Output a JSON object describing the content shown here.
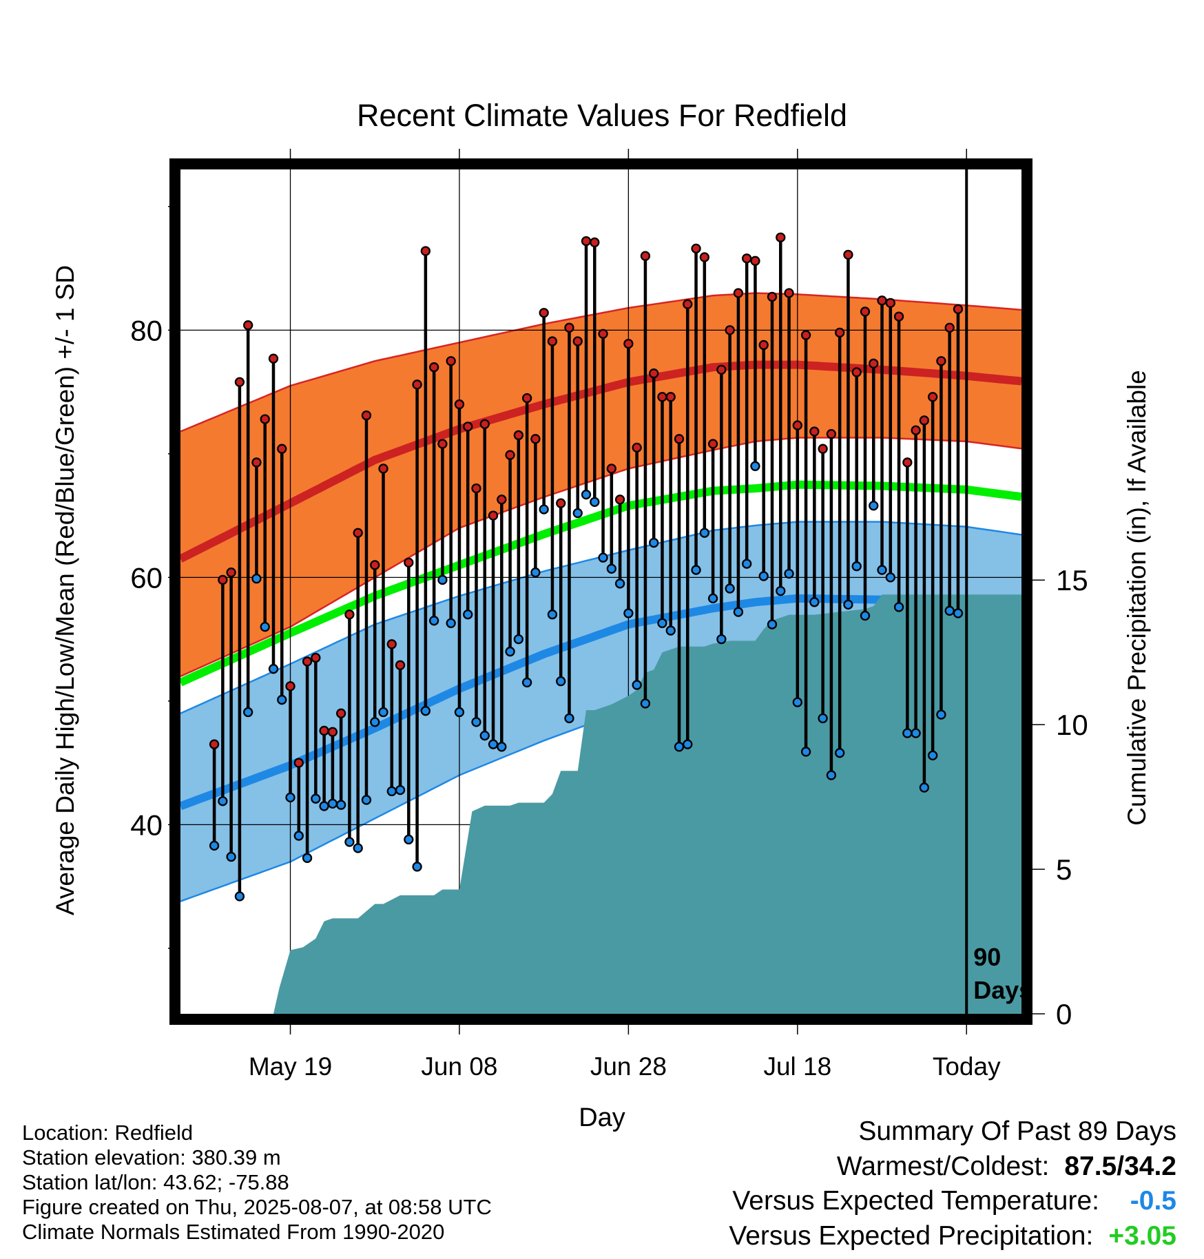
{
  "chart_data": {
    "type": "line",
    "title": "Recent Climate Values For Redfield",
    "xlabel": "Day",
    "ylabel": "Average Daily High/Low/Mean (Red/Blue/Green) +/- 1 SD",
    "y2label": "Cumulative Precipitation (in), If Available",
    "x_range_days": [
      -93,
      6.5
    ],
    "ylim": [
      24.7,
      93
    ],
    "y_ticks": [
      40,
      60,
      80
    ],
    "y2lim": [
      0,
      29.2
    ],
    "y2_ticks": [
      0,
      5,
      10,
      15
    ],
    "x_ticks": [
      {
        "day": -80,
        "label": "May 19"
      },
      {
        "day": -60,
        "label": "Jun 08"
      },
      {
        "day": -40,
        "label": "Jun 28"
      },
      {
        "day": -20,
        "label": "Jul 18"
      },
      {
        "day": 0,
        "label": "Today"
      }
    ],
    "window_label": [
      "90",
      "Days"
    ],
    "grid": true,
    "normal_days": [
      -93,
      -80,
      -70,
      -60,
      -50,
      -40,
      -30,
      -25,
      -20,
      -10,
      0,
      9
    ],
    "normal_high": [
      61.5,
      66.0,
      69.5,
      72.0,
      74.0,
      75.8,
      77.0,
      77.2,
      77.2,
      76.8,
      76.3,
      75.7
    ],
    "normal_high_upper": [
      71.8,
      75.5,
      77.5,
      79.0,
      80.5,
      81.8,
      82.8,
      83.0,
      82.9,
      82.5,
      82.0,
      81.5
    ],
    "normal_high_lower": [
      52.0,
      56.0,
      60.0,
      64.0,
      66.5,
      68.8,
      70.3,
      71.0,
      71.3,
      71.3,
      71.0,
      70.2
    ],
    "normal_mean": [
      51.5,
      55.5,
      58.5,
      61.0,
      63.5,
      65.8,
      67.0,
      67.2,
      67.5,
      67.4,
      67.1,
      66.3
    ],
    "normal_low": [
      41.5,
      44.8,
      47.8,
      51.0,
      53.8,
      56.2,
      57.5,
      58.0,
      58.3,
      58.2,
      57.7,
      56.8
    ],
    "normal_low_upper": [
      49.0,
      53.0,
      56.2,
      58.5,
      60.5,
      62.2,
      63.8,
      64.2,
      64.5,
      64.5,
      64.1,
      63.2
    ],
    "normal_low_lower": [
      33.8,
      37.0,
      40.5,
      44.0,
      46.8,
      49.3,
      51.0,
      51.7,
      52.0,
      52.2,
      51.8,
      50.6
    ],
    "series": [
      {
        "name": "High",
        "color": "#c8201e",
        "values": [
          46.5,
          59.8,
          60.4,
          75.8,
          80.4,
          69.3,
          72.8,
          77.7,
          70.4,
          51.2,
          45.0,
          53.2,
          53.5,
          47.6,
          47.5,
          49.0,
          57.0,
          63.6,
          73.1,
          61.0,
          68.8,
          54.6,
          52.9,
          61.2,
          75.6,
          86.4,
          77.0,
          70.8,
          77.5,
          74.0,
          72.2,
          67.2,
          72.4,
          65.0,
          66.3,
          69.9,
          71.5,
          74.5,
          71.2,
          81.4,
          79.1,
          66.0,
          80.2,
          79.1,
          87.2,
          87.1,
          79.7,
          68.8,
          66.3,
          78.9,
          70.5,
          86.0,
          76.5,
          74.6,
          74.6,
          71.2,
          82.1,
          86.6,
          85.9,
          70.8,
          76.8,
          80.0,
          83.0,
          85.8,
          85.6,
          78.8,
          82.7,
          87.5,
          83.0,
          72.3,
          79.6,
          71.8,
          70.4,
          71.6,
          79.8,
          86.1,
          76.6,
          81.5,
          77.3,
          82.4,
          82.2,
          81.1,
          69.3,
          71.9,
          72.7,
          74.6,
          77.5,
          80.2,
          81.7
        ]
      },
      {
        "name": "Low",
        "color": "#1e88e5",
        "values": [
          38.3,
          41.9,
          37.4,
          34.2,
          49.1,
          59.9,
          56.0,
          52.6,
          50.1,
          42.2,
          39.1,
          37.3,
          42.1,
          41.5,
          41.7,
          41.6,
          38.6,
          38.1,
          42.0,
          48.3,
          49.1,
          42.7,
          42.8,
          38.8,
          36.6,
          49.2,
          56.5,
          59.8,
          56.3,
          49.1,
          57.0,
          48.3,
          47.2,
          46.5,
          46.3,
          54.0,
          55.0,
          51.5,
          60.4,
          65.5,
          57.0,
          51.6,
          48.6,
          65.2,
          66.7,
          66.1,
          61.6,
          60.7,
          59.5,
          57.1,
          51.3,
          49.8,
          62.8,
          56.3,
          55.7,
          46.3,
          46.5,
          60.6,
          63.6,
          58.3,
          55.0,
          59.1,
          57.2,
          61.1,
          69.0,
          60.1,
          56.2,
          58.9,
          60.3,
          49.9,
          45.9,
          58.0,
          48.6,
          44.0,
          45.8,
          57.8,
          60.9,
          56.9,
          65.8,
          60.6,
          60.0,
          57.6,
          47.4,
          47.4,
          43.0,
          45.6,
          48.9,
          57.3,
          57.1
        ]
      },
      {
        "name": "Precipitation",
        "color": "#4a9aa3"
      }
    ],
    "data_x_start": -89,
    "precip_days": [
      -89,
      -82,
      -81.3,
      -80,
      -78.5,
      -77,
      -76,
      -75,
      -72,
      -70,
      -69,
      -67,
      -63,
      -62,
      -60,
      -58.5,
      -57,
      -54,
      -53,
      -50,
      -49,
      -48,
      -46,
      -45,
      -44,
      -43,
      -42,
      -40,
      -39,
      -38,
      -37,
      -36,
      -35,
      -34,
      -33,
      -31,
      -30,
      -28,
      -25,
      -24,
      -23,
      -22,
      -21,
      -20,
      -18,
      -15,
      -12,
      -11,
      -10,
      0,
      9
    ],
    "precip_cum": [
      0,
      0,
      0.9,
      2.2,
      2.3,
      2.6,
      3.2,
      3.3,
      3.3,
      3.8,
      3.8,
      4.1,
      4.1,
      4.3,
      4.3,
      7.0,
      7.2,
      7.2,
      7.3,
      7.3,
      7.6,
      8.4,
      8.4,
      10.5,
      10.5,
      10.6,
      10.7,
      11.0,
      11.2,
      11.8,
      11.9,
      12.5,
      12.6,
      12.7,
      12.7,
      12.7,
      12.8,
      12.9,
      12.9,
      13.3,
      13.6,
      13.7,
      13.8,
      13.8,
      13.8,
      13.9,
      14.0,
      14.1,
      14.5,
      14.5,
      14.5
    ]
  },
  "info": {
    "location": "Location: Redfield",
    "elevation": "Station elevation: 380.39 m",
    "latlon": "Station lat/lon: 43.62; -75.88",
    "created": "Figure created on Thu, 2025-08-07, at 08:58 UTC",
    "normals": "Climate Normals Estimated From 1990-2020"
  },
  "summary": {
    "heading": "Summary Of Past 89 Days",
    "warm_cold_label": "Warmest/Coldest:",
    "warm_cold_value": "87.5/34.2",
    "temp_label": "Versus Expected Temperature:",
    "temp_value": "-0.5",
    "temp_color": "#1e88e5",
    "precip_label": "Versus Expected Precipitation:",
    "precip_value": "+3.05",
    "precip_color": "#22cc22"
  }
}
